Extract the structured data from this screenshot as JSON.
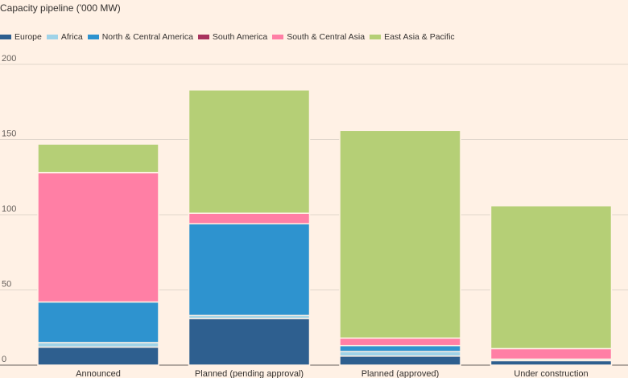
{
  "chart_data": {
    "type": "bar",
    "stacked": true,
    "title": "Capacity pipeline ('000 MW)",
    "categories": [
      "Announced",
      "Planned (pending approval)",
      "Planned (approved)",
      "Under construction"
    ],
    "ylim": [
      0,
      200
    ],
    "yticks": [
      0,
      50,
      100,
      150,
      200
    ],
    "grid": true,
    "legend_position": "top-left",
    "series": [
      {
        "name": "Europe",
        "color": "#2e5f8f",
        "values": [
          12,
          31,
          6,
          3
        ]
      },
      {
        "name": "Africa",
        "color": "#9fd3e8",
        "values": [
          3,
          2,
          3,
          1
        ]
      },
      {
        "name": "North & Central America",
        "color": "#2e93cf",
        "values": [
          27,
          61,
          4,
          0
        ]
      },
      {
        "name": "South America",
        "color": "#a8335e",
        "values": [
          0,
          0,
          0,
          0
        ]
      },
      {
        "name": "South & Central Asia",
        "color": "#ff7fa5",
        "values": [
          86,
          7,
          5,
          7
        ]
      },
      {
        "name": "East Asia & Pacific",
        "color": "#b5cf76",
        "values": [
          19,
          82,
          138,
          95
        ]
      }
    ]
  }
}
